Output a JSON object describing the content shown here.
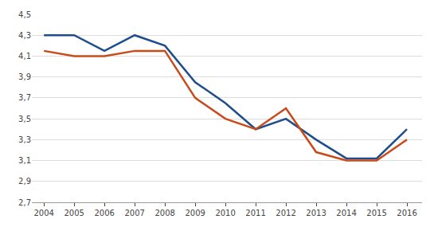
{
  "chart_data": {
    "type": "line",
    "x": [
      2004,
      2005,
      2006,
      2007,
      2008,
      2009,
      2010,
      2011,
      2012,
      2013,
      2014,
      2015,
      2016
    ],
    "series": [
      {
        "color": "#1F4E8C",
        "values": [
          4.3,
          4.3,
          4.15,
          4.3,
          4.2,
          3.85,
          3.65,
          3.4,
          3.5,
          3.3,
          3.12,
          3.12,
          3.4
        ]
      },
      {
        "color": "#C94A1A",
        "values": [
          4.15,
          4.1,
          4.1,
          4.15,
          4.15,
          3.7,
          3.5,
          3.4,
          3.6,
          3.18,
          3.1,
          3.1,
          3.3
        ]
      }
    ],
    "xlim": [
      2003.6,
      2016.5
    ],
    "xticks": [
      2004,
      2005,
      2006,
      2007,
      2008,
      2009,
      2010,
      2011,
      2012,
      2013,
      2014,
      2015,
      2016
    ],
    "ylim": [
      2.7,
      4.5
    ],
    "yticks": [
      {
        "value": 2.7,
        "label": "2,7"
      },
      {
        "value": 2.9,
        "label": "2,9"
      },
      {
        "value": 3.1,
        "label": "3,1"
      },
      {
        "value": 3.3,
        "label": "3,3"
      },
      {
        "value": 3.5,
        "label": "3,5"
      },
      {
        "value": 3.7,
        "label": "3,7"
      },
      {
        "value": 3.9,
        "label": "3,9"
      },
      {
        "value": 4.1,
        "label": "4,1"
      },
      {
        "value": 4.3,
        "label": "4,3"
      },
      {
        "value": 4.5,
        "label": "4,5"
      }
    ],
    "grid": "y"
  }
}
